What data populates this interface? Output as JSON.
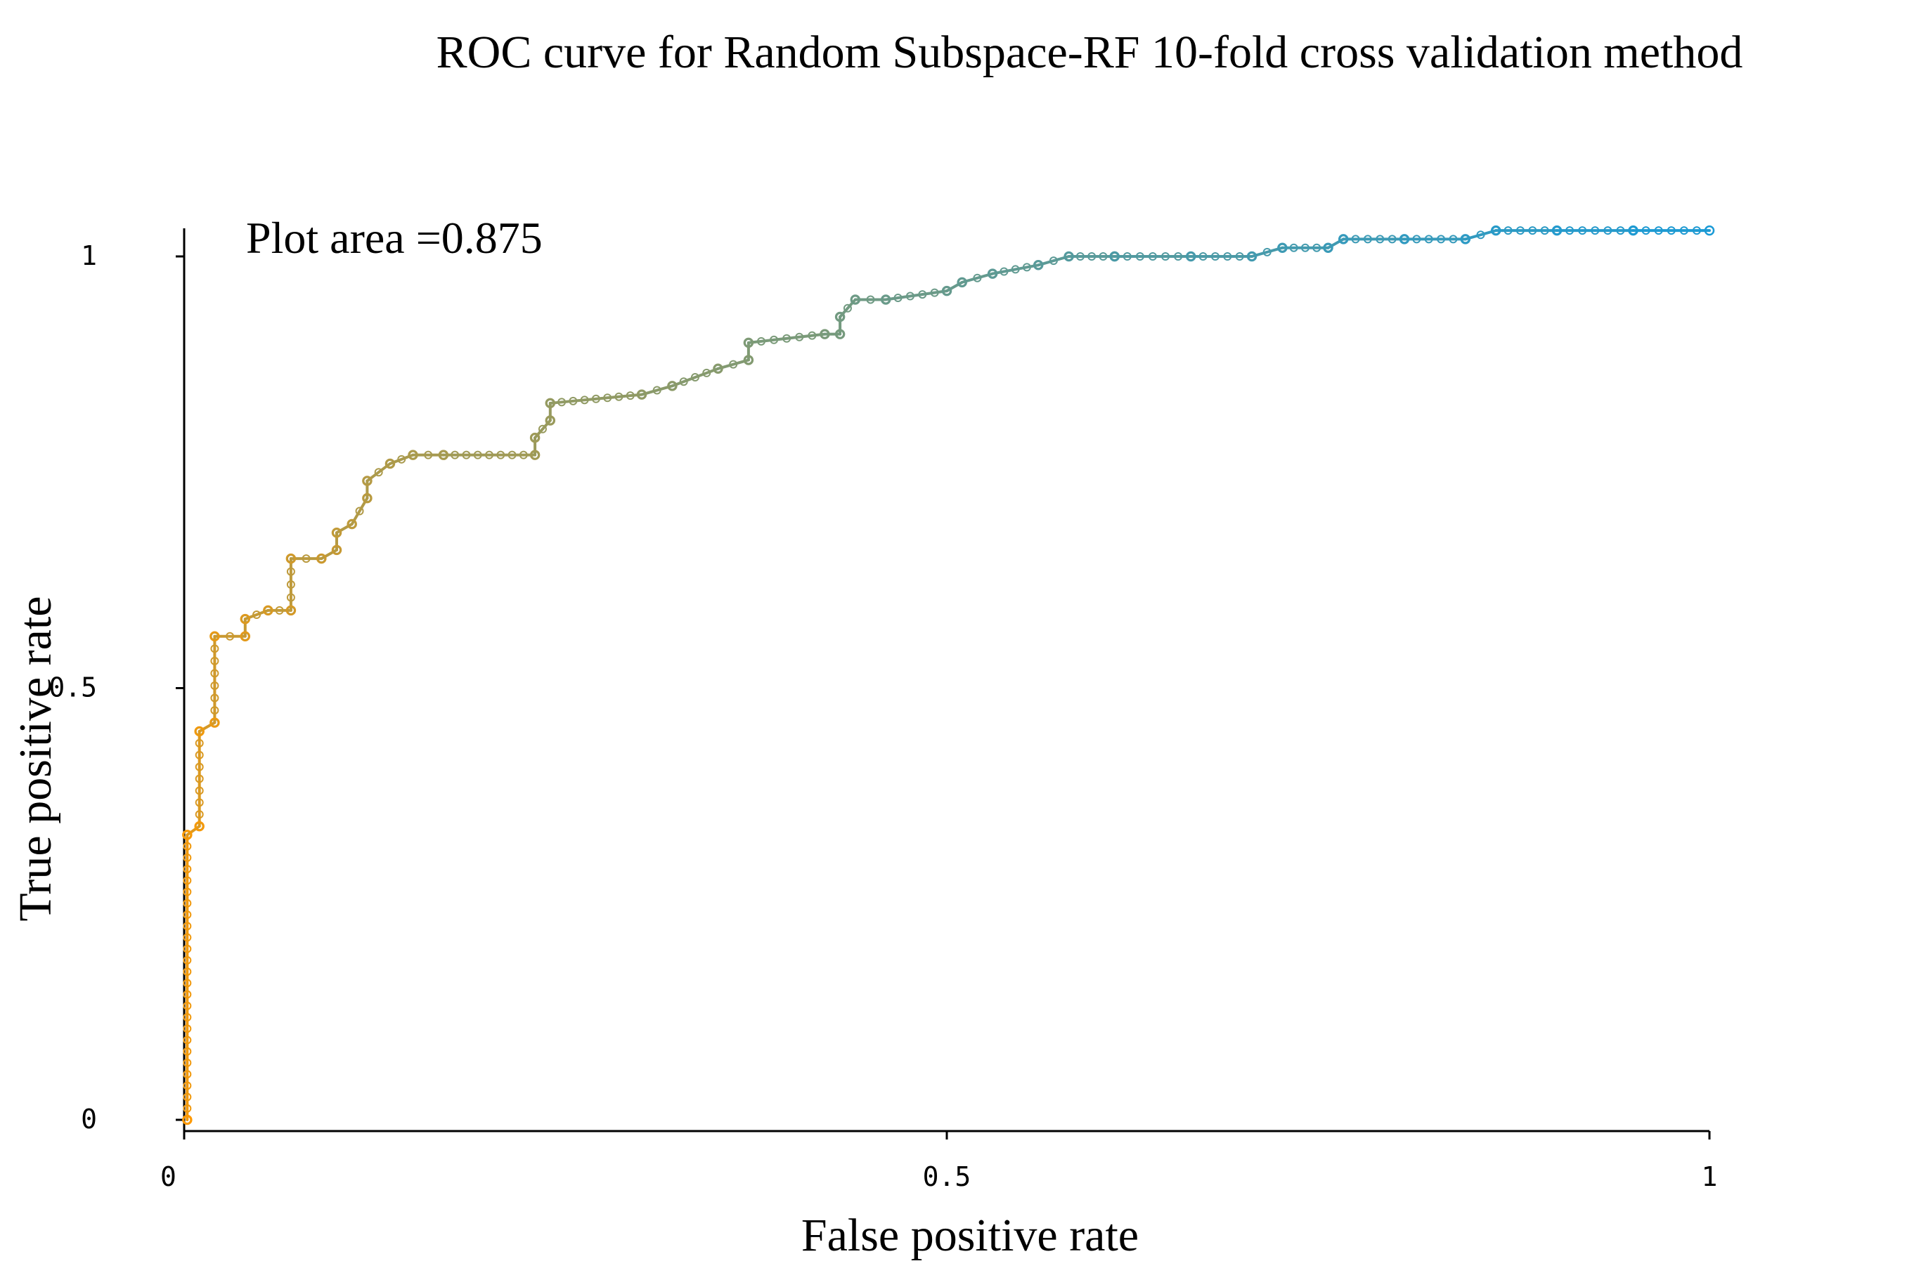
{
  "chart_data": {
    "type": "line",
    "title": "ROC curve for Random Subspace-RF 10-fold cross validation method",
    "xlabel": "False positive rate",
    "ylabel": "True positive rate",
    "annotation": "Plot area =0.875",
    "xlim": [
      0,
      1
    ],
    "ylim": [
      0,
      1
    ],
    "x_ticks": [
      {
        "value": 0,
        "label": "0"
      },
      {
        "value": 0.5,
        "label": "0.5"
      },
      {
        "value": 1,
        "label": "1"
      }
    ],
    "y_ticks": [
      {
        "value": 0,
        "label": "0"
      },
      {
        "value": 0.5,
        "label": "0.5"
      },
      {
        "value": 1,
        "label": "1"
      }
    ],
    "grid": false,
    "color_start": "#ff9900",
    "color_mid": "#8a9a6a",
    "color_end": "#1a9ad6",
    "series": [
      {
        "name": "ROC",
        "x": [
          0.002,
          0.002,
          0.01,
          0.01,
          0.02,
          0.02,
          0.04,
          0.04,
          0.055,
          0.07,
          0.07,
          0.09,
          0.1,
          0.1,
          0.11,
          0.12,
          0.12,
          0.135,
          0.15,
          0.17,
          0.23,
          0.23,
          0.24,
          0.24,
          0.3,
          0.32,
          0.35,
          0.37,
          0.37,
          0.42,
          0.43,
          0.43,
          0.44,
          0.46,
          0.5,
          0.51,
          0.53,
          0.56,
          0.58,
          0.61,
          0.61,
          0.66,
          0.7,
          0.72,
          0.75,
          0.76,
          0.8,
          0.84,
          0.86,
          0.9,
          0.95,
          1.0
        ],
        "y": [
          0.0,
          0.33,
          0.34,
          0.45,
          0.46,
          0.56,
          0.56,
          0.58,
          0.59,
          0.59,
          0.65,
          0.65,
          0.66,
          0.68,
          0.69,
          0.72,
          0.74,
          0.76,
          0.77,
          0.77,
          0.77,
          0.79,
          0.81,
          0.83,
          0.84,
          0.85,
          0.87,
          0.88,
          0.9,
          0.91,
          0.91,
          0.93,
          0.95,
          0.95,
          0.96,
          0.97,
          0.98,
          0.99,
          1.0,
          1.0,
          1.0,
          1.0,
          1.0,
          1.01,
          1.01,
          1.02,
          1.02,
          1.02,
          1.03,
          1.03,
          1.03,
          1.03
        ]
      }
    ]
  }
}
